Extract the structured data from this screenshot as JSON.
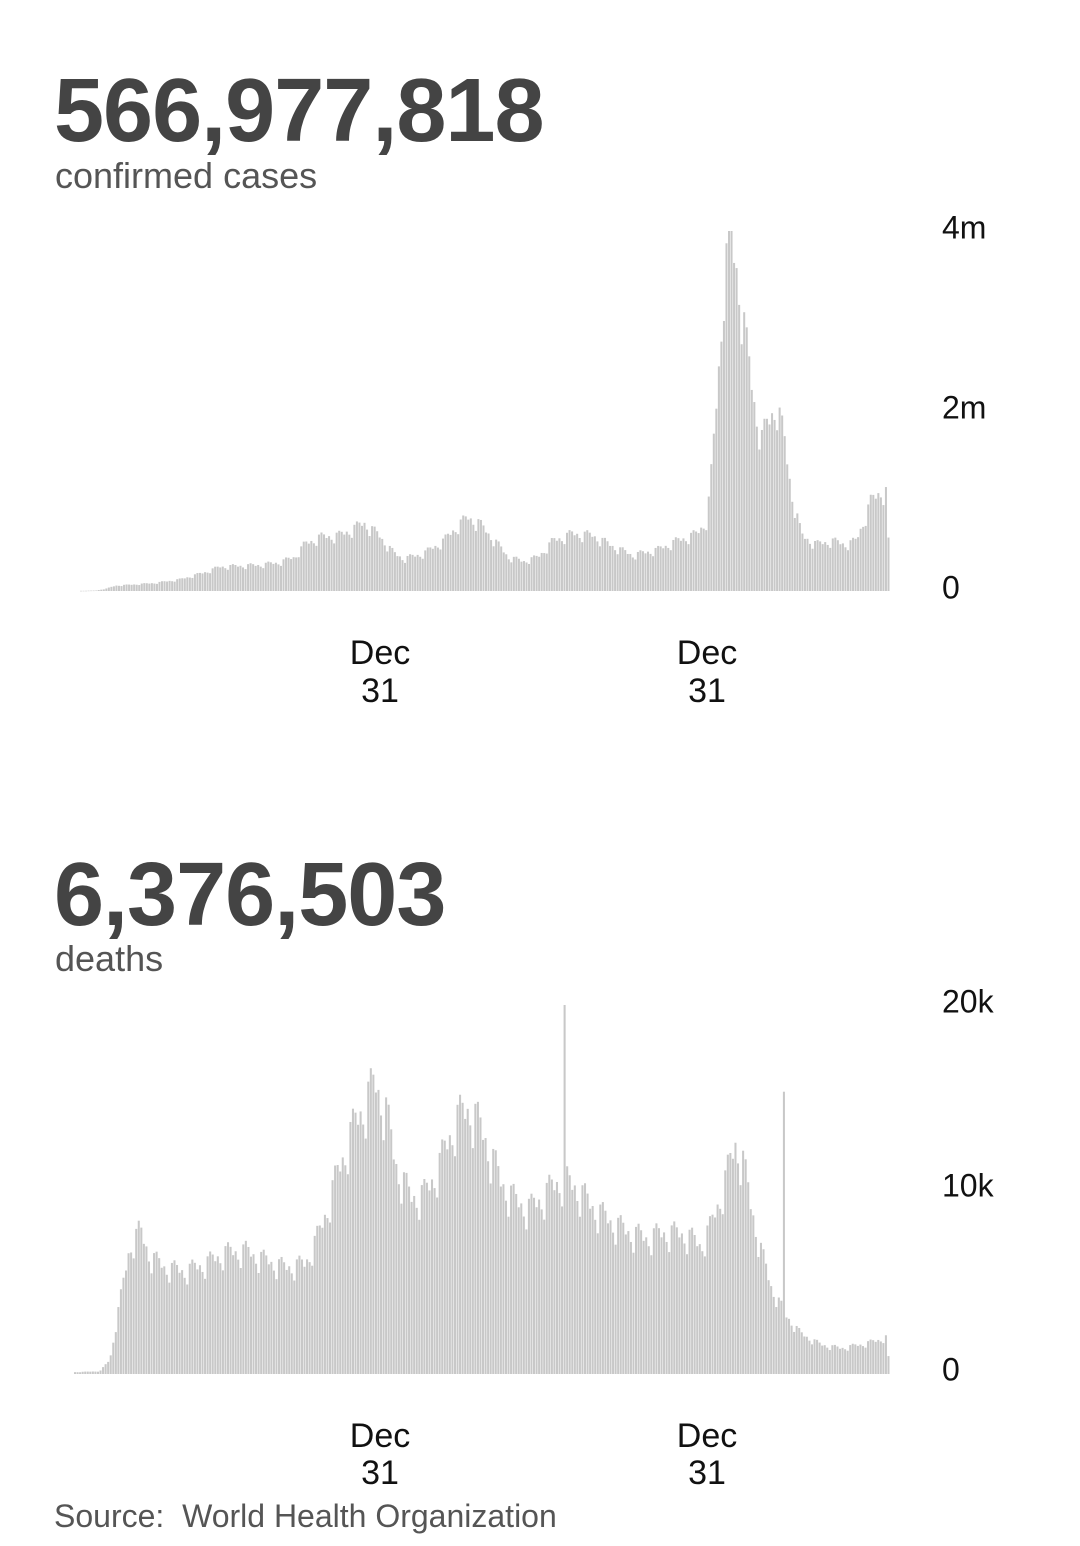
{
  "cases": {
    "total": "566,977,818",
    "label": "confirmed cases"
  },
  "deaths": {
    "total": "6,376,503",
    "label": "deaths"
  },
  "source": "Source:  World Health Organization",
  "colors": {
    "bars": "#c8c8c8",
    "headline": "#444444",
    "text": "#555555",
    "axis_text": "#111111"
  },
  "chart_data": [
    {
      "type": "bar",
      "title": "",
      "series": [
        {
          "name": "",
          "description_of_shape": "daily confirmed cases"
        }
      ],
      "x_ticks": [
        [
          "Dec",
          "31"
        ],
        [
          "Dec",
          "31"
        ]
      ],
      "y_ticks": [
        "0",
        "2m",
        "4m"
      ],
      "ylim": [
        0,
        4000000
      ],
      "anchors": [
        [
          0,
          2000
        ],
        [
          6,
          5000
        ],
        [
          10,
          25000
        ],
        [
          14,
          60000
        ],
        [
          20,
          70000
        ],
        [
          30,
          90000
        ],
        [
          40,
          130000
        ],
        [
          50,
          210000
        ],
        [
          56,
          270000
        ],
        [
          64,
          280000
        ],
        [
          72,
          290000
        ],
        [
          80,
          320000
        ],
        [
          86,
          380000
        ],
        [
          90,
          520000
        ],
        [
          96,
          600000
        ],
        [
          104,
          620000
        ],
        [
          110,
          700000
        ],
        [
          114,
          760000
        ],
        [
          120,
          620000
        ],
        [
          126,
          420000
        ],
        [
          130,
          360000
        ],
        [
          138,
          420000
        ],
        [
          146,
          560000
        ],
        [
          152,
          740000
        ],
        [
          156,
          820000
        ],
        [
          160,
          760000
        ],
        [
          166,
          580000
        ],
        [
          172,
          380000
        ],
        [
          178,
          330000
        ],
        [
          184,
          380000
        ],
        [
          190,
          560000
        ],
        [
          198,
          640000
        ],
        [
          206,
          620000
        ],
        [
          214,
          500000
        ],
        [
          222,
          400000
        ],
        [
          232,
          460000
        ],
        [
          240,
          560000
        ],
        [
          248,
          640000
        ],
        [
          252,
          800000
        ],
        [
          254,
          1400000
        ],
        [
          257,
          2600000
        ],
        [
          259,
          3600000
        ],
        [
          262,
          3900000
        ],
        [
          265,
          3400000
        ],
        [
          268,
          2700000
        ],
        [
          271,
          2100000
        ],
        [
          274,
          1700000
        ],
        [
          277,
          1900000
        ],
        [
          280,
          2100000
        ],
        [
          283,
          1700000
        ],
        [
          286,
          1100000
        ],
        [
          290,
          620000
        ],
        [
          296,
          520000
        ],
        [
          302,
          560000
        ],
        [
          308,
          520000
        ],
        [
          312,
          560000
        ],
        [
          318,
          1000000
        ],
        [
          322,
          1120000
        ],
        [
          324,
          1100000
        ],
        [
          325,
          550000
        ]
      ]
    },
    {
      "type": "bar",
      "title": "",
      "series": [
        {
          "name": "",
          "description_of_shape": "daily deaths"
        }
      ],
      "x_ticks": [
        [
          "Dec",
          "31"
        ],
        [
          "Dec",
          "31"
        ]
      ],
      "y_ticks": [
        "0",
        "10k",
        "20k"
      ],
      "ylim": [
        0,
        20000
      ],
      "anchors": [
        [
          0,
          100
        ],
        [
          10,
          150
        ],
        [
          14,
          800
        ],
        [
          18,
          4000
        ],
        [
          22,
          7000
        ],
        [
          26,
          7800
        ],
        [
          30,
          6400
        ],
        [
          36,
          5800
        ],
        [
          44,
          5600
        ],
        [
          52,
          6000
        ],
        [
          60,
          6600
        ],
        [
          68,
          6700
        ],
        [
          76,
          6200
        ],
        [
          84,
          5800
        ],
        [
          92,
          6000
        ],
        [
          98,
          7800
        ],
        [
          104,
          10500
        ],
        [
          110,
          13000
        ],
        [
          116,
          14800
        ],
        [
          120,
          15800
        ],
        [
          124,
          14500
        ],
        [
          128,
          11500
        ],
        [
          134,
          9600
        ],
        [
          140,
          9800
        ],
        [
          146,
          11500
        ],
        [
          152,
          13800
        ],
        [
          158,
          14500
        ],
        [
          164,
          12800
        ],
        [
          170,
          10500
        ],
        [
          176,
          9400
        ],
        [
          182,
          9000
        ],
        [
          188,
          9800
        ],
        [
          194,
          10600
        ],
        [
          200,
          10200
        ],
        [
          206,
          9200
        ],
        [
          212,
          8500
        ],
        [
          220,
          7800
        ],
        [
          228,
          7400
        ],
        [
          236,
          7700
        ],
        [
          244,
          7600
        ],
        [
          250,
          7000
        ],
        [
          254,
          8000
        ],
        [
          260,
          10600
        ],
        [
          264,
          12600
        ],
        [
          267,
          11500
        ],
        [
          270,
          9200
        ],
        [
          274,
          6800
        ],
        [
          278,
          4800
        ],
        [
          284,
          3200
        ],
        [
          290,
          2200
        ],
        [
          298,
          1600
        ],
        [
          306,
          1400
        ],
        [
          314,
          1600
        ],
        [
          320,
          1800
        ],
        [
          324,
          2000
        ],
        [
          325,
          900
        ]
      ],
      "spikes": [
        [
          196,
          20000
        ],
        [
          81,
          9300
        ],
        [
          283,
          15300
        ]
      ]
    }
  ]
}
